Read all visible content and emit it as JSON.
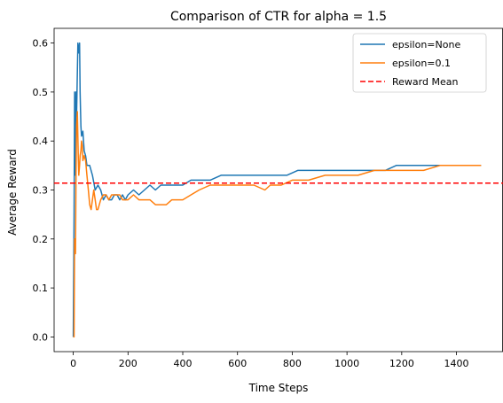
{
  "chart_data": {
    "type": "line",
    "title": "Comparison of CTR for alpha = 1.5",
    "xlabel": "Time Steps",
    "ylabel": "Average Reward",
    "xlim": [
      -70,
      1570
    ],
    "ylim": [
      -0.03,
      0.63
    ],
    "xticks": [
      0,
      200,
      400,
      600,
      800,
      1000,
      1200,
      1400
    ],
    "yticks": [
      0.0,
      0.1,
      0.2,
      0.3,
      0.4,
      0.5,
      0.6
    ],
    "grid": false,
    "legend_position": "top-right",
    "reference_line": {
      "name": "Reward Mean",
      "value": 0.314,
      "color": "#ff0000",
      "style": "dashed"
    },
    "series": [
      {
        "name": "epsilon=None",
        "color": "#1f77b4",
        "x": [
          0,
          3,
          5,
          8,
          10,
          12,
          15,
          17,
          20,
          23,
          25,
          28,
          30,
          35,
          40,
          45,
          50,
          60,
          70,
          80,
          90,
          100,
          110,
          120,
          130,
          140,
          150,
          160,
          170,
          180,
          190,
          200,
          220,
          240,
          260,
          280,
          300,
          320,
          340,
          360,
          380,
          400,
          430,
          460,
          500,
          540,
          580,
          620,
          660,
          700,
          740,
          780,
          820,
          860,
          900,
          940,
          980,
          1020,
          1060,
          1100,
          1140,
          1180,
          1220,
          1260,
          1300,
          1340,
          1380,
          1420,
          1460,
          1490
        ],
        "y": [
          0.0,
          0.25,
          0.5,
          0.33,
          0.5,
          0.45,
          0.54,
          0.6,
          0.58,
          0.6,
          0.5,
          0.43,
          0.41,
          0.42,
          0.38,
          0.37,
          0.35,
          0.35,
          0.33,
          0.3,
          0.31,
          0.3,
          0.28,
          0.29,
          0.28,
          0.28,
          0.29,
          0.29,
          0.28,
          0.29,
          0.28,
          0.29,
          0.3,
          0.29,
          0.3,
          0.31,
          0.3,
          0.31,
          0.31,
          0.31,
          0.31,
          0.31,
          0.32,
          0.32,
          0.32,
          0.33,
          0.33,
          0.33,
          0.33,
          0.33,
          0.33,
          0.33,
          0.34,
          0.34,
          0.34,
          0.34,
          0.34,
          0.34,
          0.34,
          0.34,
          0.34,
          0.35,
          0.35,
          0.35,
          0.35,
          0.35,
          0.35,
          0.35,
          0.35,
          0.35
        ]
      },
      {
        "name": "epsilon=0.1",
        "color": "#ff7f0e",
        "x": [
          0,
          3,
          5,
          8,
          10,
          12,
          15,
          18,
          20,
          23,
          25,
          28,
          30,
          33,
          35,
          40,
          45,
          50,
          55,
          60,
          65,
          70,
          75,
          80,
          85,
          90,
          100,
          110,
          120,
          130,
          140,
          150,
          160,
          170,
          180,
          200,
          220,
          240,
          260,
          280,
          300,
          320,
          340,
          360,
          400,
          430,
          460,
          500,
          540,
          580,
          620,
          660,
          700,
          720,
          760,
          800,
          860,
          920,
          980,
          1040,
          1100,
          1160,
          1220,
          1280,
          1340,
          1400,
          1460,
          1490
        ],
        "y": [
          0.0,
          0.0,
          0.2,
          0.17,
          0.33,
          0.43,
          0.46,
          0.37,
          0.33,
          0.35,
          0.37,
          0.38,
          0.4,
          0.39,
          0.36,
          0.37,
          0.36,
          0.33,
          0.3,
          0.27,
          0.26,
          0.28,
          0.3,
          0.28,
          0.26,
          0.26,
          0.28,
          0.29,
          0.29,
          0.28,
          0.29,
          0.29,
          0.29,
          0.29,
          0.28,
          0.28,
          0.29,
          0.28,
          0.28,
          0.28,
          0.27,
          0.27,
          0.27,
          0.28,
          0.28,
          0.29,
          0.3,
          0.31,
          0.31,
          0.31,
          0.31,
          0.31,
          0.3,
          0.31,
          0.31,
          0.32,
          0.32,
          0.33,
          0.33,
          0.33,
          0.34,
          0.34,
          0.34,
          0.34,
          0.35,
          0.35,
          0.35,
          0.35
        ]
      }
    ]
  }
}
